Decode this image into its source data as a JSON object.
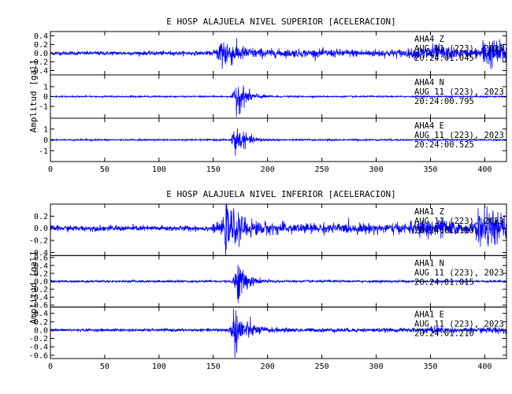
{
  "colors": {
    "trace": "#0000ff",
    "axis": "#000000",
    "background": "#ffffff"
  },
  "chart_data": {
    "type": "line",
    "x_ticks": [
      0,
      50,
      100,
      150,
      200,
      250,
      300,
      350,
      400
    ],
    "xlim": [
      0,
      420
    ],
    "groups": [
      {
        "title": "E HOSP ALAJUELA NIVEL SUPERIOR [ACELERACION]",
        "ylabel": "Amplitud [gal]",
        "panels": [
          {
            "channel": "AHA4 Z",
            "label_lines": [
              "AHA4   Z",
              "AUG 11 (223), 2023",
              "20:24:01.045"
            ],
            "ylim": [
              -0.5,
              0.5
            ],
            "y_ticks": [
              0.4,
              0.2,
              0.0,
              -0.2,
              -0.4
            ],
            "y_tick_labels": [
              "0.4",
              "0.2",
              "0.0",
              "-0.2",
              "-0.4"
            ],
            "base_amp": 0.05,
            "events": [
              {
                "t": 158,
                "amp": 0.42,
                "width": 12
              },
              {
                "t": 400,
                "amp": 0.2,
                "width": 20
              }
            ],
            "tail_amp": 0.12
          },
          {
            "channel": "AHA4 N",
            "label_lines": [
              "AHA4   N",
              "AUG 11 (223), 2023",
              "20:24:00.795"
            ],
            "ylim": [
              -2.2,
              2.2
            ],
            "y_ticks": [
              1,
              0,
              -1
            ],
            "y_tick_labels": [
              "1",
              "0",
              "-1"
            ],
            "base_amp": 0.08,
            "events": [
              {
                "t": 172,
                "amp": 1.9,
                "width": 9
              }
            ],
            "tail_amp": 0.0
          },
          {
            "channel": "AHA4 E",
            "label_lines": [
              "AHA4   E",
              "AUG 11 (223), 2023",
              "20:24:00.525"
            ],
            "ylim": [
              -2.0,
              2.0
            ],
            "y_ticks": [
              1,
              0,
              -1
            ],
            "y_tick_labels": [
              "1",
              "0",
              "-1"
            ],
            "base_amp": 0.08,
            "events": [
              {
                "t": 170,
                "amp": 1.6,
                "width": 9
              }
            ],
            "tail_amp": 0.0
          }
        ]
      },
      {
        "title": "E HOSP ALAJUELA NIVEL INFERIOR [ACELERACION]",
        "ylabel": "Amplitud [gal]",
        "panels": [
          {
            "channel": "AHA1 Z",
            "label_lines": [
              "AHA1   Z",
              "AUG 11 (223), 2023",
              "20:24:01.110"
            ],
            "ylim": [
              -0.45,
              0.4
            ],
            "y_ticks": [
              0.2,
              0.0,
              -0.2,
              -0.4
            ],
            "y_tick_labels": [
              "0.2",
              "0.0",
              "-0.2",
              "-0.4"
            ],
            "base_amp": 0.05,
            "events": [
              {
                "t": 162,
                "amp": 0.36,
                "width": 14
              },
              {
                "t": 395,
                "amp": 0.2,
                "width": 20
              }
            ],
            "tail_amp": 0.1
          },
          {
            "channel": "AHA1 N",
            "label_lines": [
              "AHA1   N",
              "AUG 11 (223), 2023",
              "20:24:01.015"
            ],
            "ylim": [
              -0.65,
              0.65
            ],
            "y_ticks": [
              0.6,
              0.4,
              0.2,
              0.0,
              -0.2,
              -0.4,
              -0.6
            ],
            "y_tick_labels": [
              "0.6",
              "0.4",
              "0.2",
              "0.0",
              "-0.2",
              "-0.4",
              "-0.6"
            ],
            "base_amp": 0.03,
            "events": [
              {
                "t": 172,
                "amp": 0.6,
                "width": 8
              }
            ],
            "tail_amp": 0.0
          },
          {
            "channel": "AHA1 E",
            "label_lines": [
              "AHA1   E",
              "AUG 11 (223), 2023",
              "20:24:01.210"
            ],
            "ylim": [
              -0.68,
              0.55
            ],
            "y_ticks": [
              0.4,
              0.2,
              0.0,
              -0.2,
              -0.4,
              -0.6
            ],
            "y_tick_labels": [
              "0.4",
              "0.2",
              "0.0",
              "-0.2",
              "-0.4",
              "-0.6"
            ],
            "base_amp": 0.035,
            "events": [
              {
                "t": 170,
                "amp": 0.6,
                "width": 10
              }
            ],
            "tail_amp": 0.04
          }
        ]
      }
    ]
  }
}
